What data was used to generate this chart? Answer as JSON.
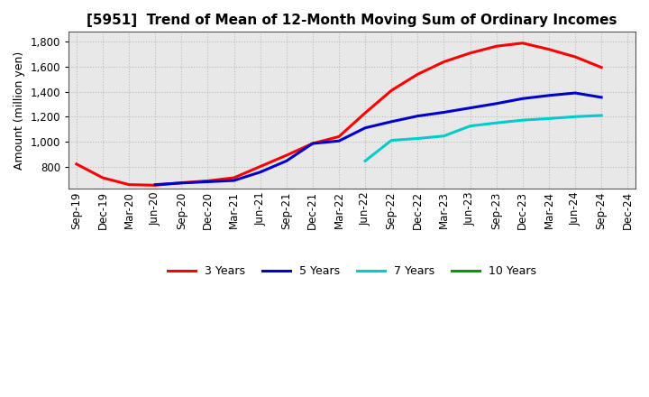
{
  "title": "[5951]  Trend of Mean of 12-Month Moving Sum of Ordinary Incomes",
  "ylabel": "Amount (million yen)",
  "plot_bg_color": "#e8e8e8",
  "fig_bg_color": "#ffffff",
  "grid_color": "#bbbbbb",
  "ylim": [
    620,
    1880
  ],
  "x_labels": [
    "Sep-19",
    "Dec-19",
    "Mar-20",
    "Jun-20",
    "Sep-20",
    "Dec-20",
    "Mar-21",
    "Jun-21",
    "Sep-21",
    "Dec-21",
    "Mar-22",
    "Jun-22",
    "Sep-22",
    "Dec-22",
    "Mar-23",
    "Jun-23",
    "Sep-23",
    "Dec-23",
    "Mar-24",
    "Jun-24",
    "Sep-24",
    "Dec-24"
  ],
  "y_3yr": [
    820,
    710,
    655,
    650,
    670,
    685,
    710,
    800,
    890,
    985,
    1040,
    1230,
    1410,
    1540,
    1640,
    1710,
    1765,
    1790,
    1740,
    1680,
    1595,
    null
  ],
  "y_5yr": [
    null,
    null,
    null,
    655,
    668,
    678,
    688,
    755,
    845,
    985,
    1005,
    1110,
    1160,
    1205,
    1235,
    1270,
    1305,
    1345,
    1370,
    1390,
    1355,
    null
  ],
  "y_7yr": [
    null,
    null,
    null,
    null,
    null,
    null,
    null,
    null,
    null,
    null,
    null,
    845,
    1010,
    1025,
    1045,
    1125,
    1150,
    1172,
    1185,
    1200,
    1210,
    null
  ],
  "y_10yr": [
    null,
    null,
    null,
    null,
    null,
    null,
    null,
    null,
    null,
    null,
    null,
    null,
    null,
    null,
    null,
    null,
    null,
    null,
    null,
    null,
    null,
    null
  ],
  "line_color_3yr": "#ff0000",
  "line_color_5yr": "#0000cc",
  "line_color_7yr": "#00cccc",
  "line_color_10yr": "#009900",
  "linewidth": 2.2,
  "legend_labels": [
    "3 Years",
    "5 Years",
    "7 Years",
    "10 Years"
  ],
  "yticks": [
    800,
    1000,
    1200,
    1400,
    1600,
    1800
  ],
  "title_fontsize": 11,
  "label_fontsize": 9,
  "tick_fontsize": 8.5,
  "legend_fontsize": 9
}
